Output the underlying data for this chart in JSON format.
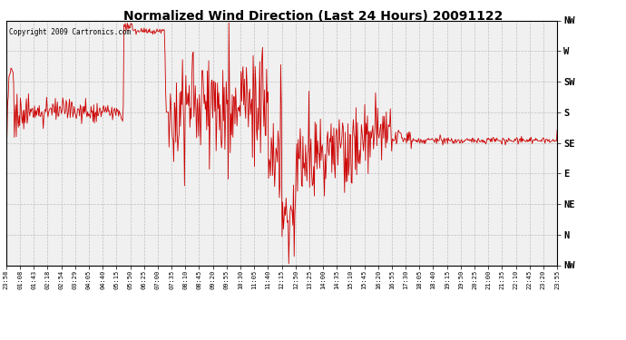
{
  "title": "Normalized Wind Direction (Last 24 Hours) 20091122",
  "copyright": "Copyright 2009 Cartronics.com",
  "line_color": "#cc0000",
  "bg_color": "#ffffff",
  "plot_bg_color": "#f0f0f0",
  "grid_color": "#bbbbbb",
  "ytick_labels": [
    "NW",
    "W",
    "SW",
    "S",
    "SE",
    "E",
    "NE",
    "N",
    "NW"
  ],
  "ytick_values": [
    8,
    7,
    6,
    5,
    4,
    3,
    2,
    1,
    0
  ],
  "xtick_labels": [
    "23:58",
    "01:08",
    "01:43",
    "02:18",
    "02:54",
    "03:29",
    "04:05",
    "04:40",
    "05:15",
    "05:50",
    "06:25",
    "07:00",
    "07:35",
    "08:10",
    "08:45",
    "09:20",
    "09:55",
    "10:30",
    "11:05",
    "11:40",
    "12:15",
    "12:50",
    "13:25",
    "14:00",
    "14:35",
    "15:10",
    "15:45",
    "16:20",
    "16:55",
    "17:30",
    "18:05",
    "18:40",
    "19:15",
    "19:50",
    "20:25",
    "21:00",
    "21:35",
    "22:10",
    "22:45",
    "23:20",
    "23:55"
  ],
  "ymin": 0,
  "ymax": 8
}
